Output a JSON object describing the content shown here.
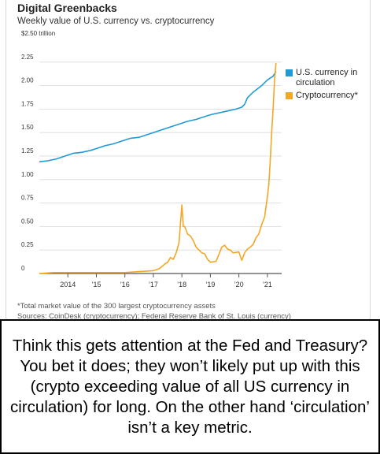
{
  "title": "Digital Greenbacks",
  "subtitle": "Weekly value of U.S. currency vs. cryptocurrency",
  "footnote": "*Total market value of the 300 largest cryptocurrency assets",
  "sources": "Sources: CoinDesk (cryptocurrency); Federal Reserve Bank of St. Louis (currency)",
  "caption": "Think this gets attention at the Fed and Treasury? You bet it does; they won’t likely put up with this (crypto exceeding value of all US currency in circulation) for long. On the other hand ‘circulation’ isn’t a key metric.",
  "colors": {
    "usd": "#1f9ad6",
    "crypto": "#f5a623",
    "grid": "#d9d9d9",
    "axis": "#555555"
  },
  "chart_data": {
    "type": "line",
    "ylim": [
      0,
      2.5
    ],
    "xlim": [
      2013.0,
      2021.5
    ],
    "y_ticks": [
      {
        "value": 2.5,
        "label": "$2.50 trillion"
      },
      {
        "value": 2.25,
        "label": "2.25"
      },
      {
        "value": 2.0,
        "label": "2.00"
      },
      {
        "value": 1.75,
        "label": "1.75"
      },
      {
        "value": 1.5,
        "label": "1.50"
      },
      {
        "value": 1.25,
        "label": "1.25"
      },
      {
        "value": 1.0,
        "label": "1.00"
      },
      {
        "value": 0.75,
        "label": "0.75"
      },
      {
        "value": 0.5,
        "label": "0.50"
      },
      {
        "value": 0.25,
        "label": "0.25"
      },
      {
        "value": 0,
        "label": "0"
      }
    ],
    "x_ticks": [
      {
        "value": 2014,
        "label": "2014"
      },
      {
        "value": 2015,
        "label": "’15"
      },
      {
        "value": 2016,
        "label": "’16"
      },
      {
        "value": 2017,
        "label": "’17"
      },
      {
        "value": 2018,
        "label": "’18"
      },
      {
        "value": 2019,
        "label": "’19"
      },
      {
        "value": 2020,
        "label": "’20"
      },
      {
        "value": 2021,
        "label": "’21"
      }
    ],
    "grid": true,
    "legend_position": "top-right",
    "series": [
      {
        "name": "U.S. currency in circulation",
        "key": "usd",
        "x": [
          2013.0,
          2013.3,
          2013.6,
          2013.9,
          2014.2,
          2014.5,
          2014.8,
          2015.0,
          2015.3,
          2015.6,
          2015.9,
          2016.2,
          2016.5,
          2016.8,
          2017.0,
          2017.3,
          2017.6,
          2017.9,
          2018.2,
          2018.5,
          2018.8,
          2019.0,
          2019.3,
          2019.6,
          2019.9,
          2020.1,
          2020.2,
          2020.3,
          2020.5,
          2020.8,
          2021.0,
          2021.2,
          2021.3
        ],
        "y": [
          1.19,
          1.2,
          1.22,
          1.25,
          1.28,
          1.29,
          1.31,
          1.33,
          1.36,
          1.38,
          1.41,
          1.44,
          1.45,
          1.48,
          1.5,
          1.53,
          1.56,
          1.59,
          1.62,
          1.64,
          1.67,
          1.69,
          1.71,
          1.73,
          1.75,
          1.77,
          1.8,
          1.87,
          1.93,
          2.0,
          2.06,
          2.1,
          2.15
        ]
      },
      {
        "name": "Cryptocurrency*",
        "key": "crypto",
        "x": [
          2013.0,
          2013.5,
          2014.0,
          2014.5,
          2015.0,
          2015.5,
          2016.0,
          2016.5,
          2017.0,
          2017.2,
          2017.4,
          2017.5,
          2017.6,
          2017.7,
          2017.8,
          2017.9,
          2017.96,
          2018.0,
          2018.05,
          2018.1,
          2018.2,
          2018.3,
          2018.4,
          2018.5,
          2018.6,
          2018.7,
          2018.8,
          2018.9,
          2019.0,
          2019.2,
          2019.4,
          2019.5,
          2019.6,
          2019.7,
          2019.8,
          2020.0,
          2020.1,
          2020.2,
          2020.3,
          2020.4,
          2020.5,
          2020.6,
          2020.7,
          2020.8,
          2020.9,
          2021.0,
          2021.05,
          2021.1,
          2021.15,
          2021.2,
          2021.25,
          2021.3
        ],
        "y": [
          0.0,
          0.01,
          0.01,
          0.01,
          0.01,
          0.01,
          0.01,
          0.02,
          0.03,
          0.05,
          0.1,
          0.12,
          0.17,
          0.15,
          0.22,
          0.33,
          0.57,
          0.73,
          0.5,
          0.5,
          0.42,
          0.4,
          0.35,
          0.28,
          0.25,
          0.22,
          0.21,
          0.15,
          0.12,
          0.13,
          0.28,
          0.3,
          0.26,
          0.25,
          0.22,
          0.23,
          0.14,
          0.22,
          0.26,
          0.28,
          0.31,
          0.38,
          0.42,
          0.52,
          0.6,
          0.82,
          0.95,
          1.2,
          1.5,
          1.75,
          2.05,
          2.24
        ]
      }
    ]
  }
}
